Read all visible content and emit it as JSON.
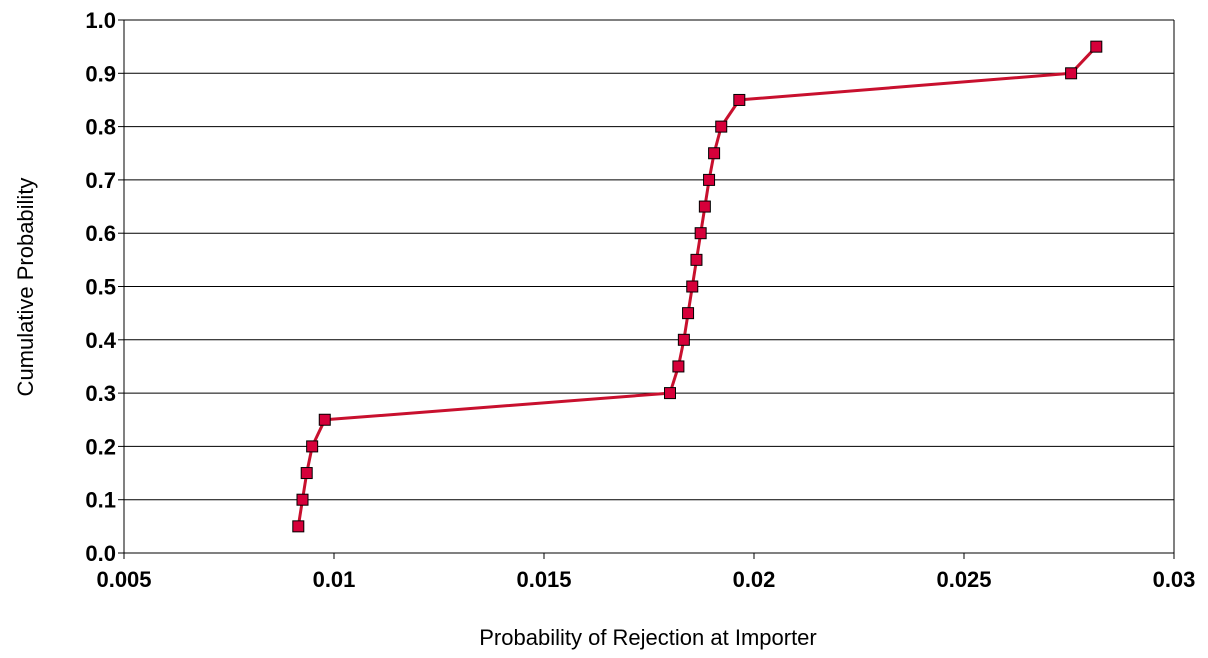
{
  "chart_data": {
    "type": "line",
    "title": "",
    "xlabel": "Probability of Rejection at Importer",
    "ylabel": "Cumulative Probability",
    "xlim": [
      0.005,
      0.03
    ],
    "ylim": [
      0.0,
      1.0
    ],
    "x_ticks": [
      "0.005",
      "0.01",
      "0.015",
      "0.02",
      "0.025",
      "0.03"
    ],
    "y_ticks": [
      "0.0",
      "0.1",
      "0.2",
      "0.3",
      "0.4",
      "0.5",
      "0.6",
      "0.7",
      "0.8",
      "0.9",
      "1.0"
    ],
    "grid": "horizontal",
    "legend": "none",
    "series": [
      {
        "color": "#c8102e",
        "marker": "square",
        "marker_color": "#d6003a",
        "x": [
          0.00915,
          0.00925,
          0.00935,
          0.00948,
          0.00978,
          0.018,
          0.0182,
          0.01833,
          0.01843,
          0.01853,
          0.01863,
          0.01873,
          0.01883,
          0.01893,
          0.01905,
          0.01922,
          0.01965,
          0.02755,
          0.02815
        ],
        "y": [
          0.05,
          0.1,
          0.15,
          0.2,
          0.25,
          0.3,
          0.35,
          0.4,
          0.45,
          0.5,
          0.55,
          0.6,
          0.65,
          0.7,
          0.75,
          0.8,
          0.85,
          0.9,
          0.95
        ]
      }
    ]
  }
}
